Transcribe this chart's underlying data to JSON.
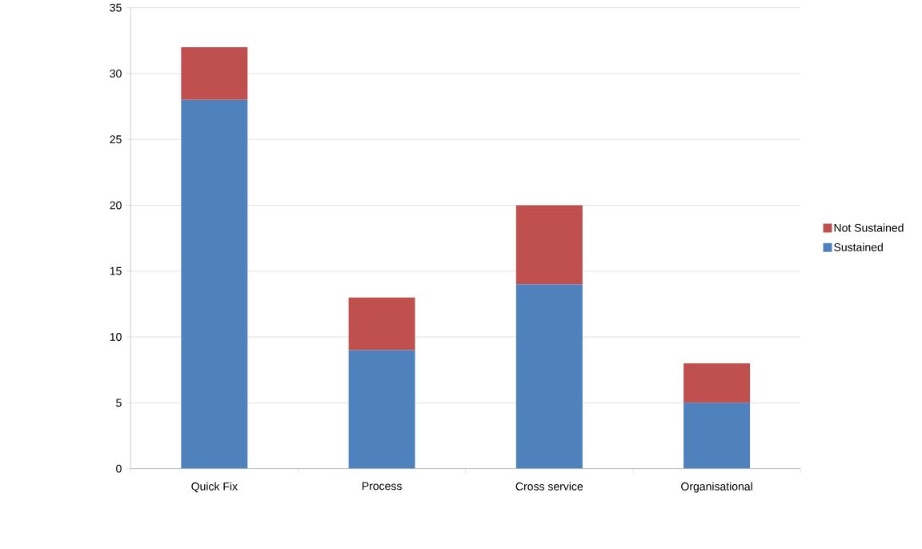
{
  "chart_data": {
    "type": "bar",
    "stacked": true,
    "categories": [
      "Quick Fix",
      "Process",
      "Cross service",
      "Organisational"
    ],
    "series": [
      {
        "name": "Sustained",
        "color": "#4f81bd",
        "values": [
          28,
          9,
          14,
          5
        ]
      },
      {
        "name": "Not Sustained",
        "color": "#c0504d",
        "values": [
          4,
          4,
          6,
          3
        ]
      }
    ],
    "ylim": [
      0,
      35
    ],
    "yticks": [
      0,
      5,
      10,
      15,
      20,
      25,
      30,
      35
    ],
    "grid": "y",
    "legend": "right"
  }
}
